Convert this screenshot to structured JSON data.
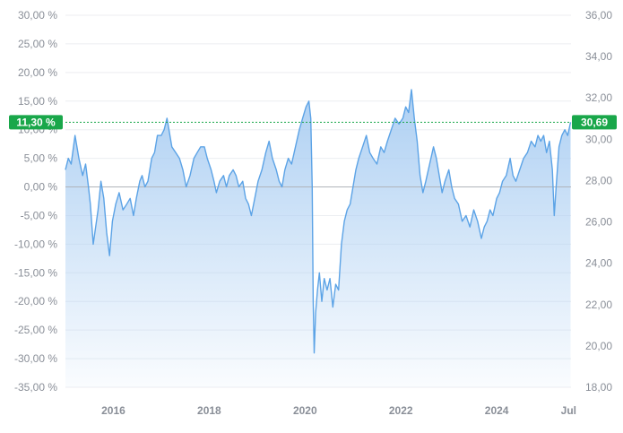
{
  "chart_data": {
    "type": "area",
    "title": "",
    "xlabel": "",
    "ylabel": "",
    "x_range": [
      2015.0,
      2025.55
    ],
    "y_left_range": [
      -35,
      30
    ],
    "y_right_range": [
      18,
      36
    ],
    "y_left_ticks": [
      30,
      25,
      20,
      15,
      10,
      5,
      0,
      -5,
      -10,
      -15,
      -20,
      -25,
      -30,
      -35
    ],
    "y_left_tick_labels": [
      "30,00 %",
      "25,00 %",
      "20,00 %",
      "15,00 %",
      "10,00 %",
      "5,00 %",
      "0,00 %",
      "-5,00 %",
      "-10,00 %",
      "-15,00 %",
      "-20,00 %",
      "-25,00 %",
      "-30,00 %",
      "-35,00 %"
    ],
    "y_right_ticks": [
      36,
      34,
      32,
      30,
      28,
      26,
      24,
      22,
      20,
      18
    ],
    "y_right_tick_labels": [
      "36,00",
      "34,00",
      "32,00",
      "30,00",
      "28,00",
      "26,00",
      "24,00",
      "22,00",
      "20,00",
      "18,00"
    ],
    "x_ticks": [
      2016,
      2018,
      2020,
      2022,
      2024,
      2025.5
    ],
    "x_tick_labels": [
      "2016",
      "2018",
      "2020",
      "2022",
      "2024",
      "Jul"
    ],
    "current_value_left": 11.3,
    "current_label_left": "11,30 %",
    "current_label_right": "30,69",
    "colors": {
      "line": "#5ca3e6",
      "fill_top": "#a9cdf2",
      "badge": "#19a74a",
      "zero_line": "#b0b4ba",
      "grid": "#eceef1"
    },
    "grid": true,
    "series": [
      {
        "values": [
          [
            2015.0,
            3
          ],
          [
            2015.06,
            5
          ],
          [
            2015.12,
            4
          ],
          [
            2015.2,
            9
          ],
          [
            2015.28,
            5
          ],
          [
            2015.36,
            2
          ],
          [
            2015.42,
            4
          ],
          [
            2015.48,
            0
          ],
          [
            2015.52,
            -3
          ],
          [
            2015.58,
            -10
          ],
          [
            2015.63,
            -7
          ],
          [
            2015.68,
            -4
          ],
          [
            2015.74,
            1
          ],
          [
            2015.8,
            -2
          ],
          [
            2015.86,
            -8
          ],
          [
            2015.92,
            -12
          ],
          [
            2015.98,
            -6
          ],
          [
            2016.05,
            -3
          ],
          [
            2016.12,
            -1
          ],
          [
            2016.2,
            -4
          ],
          [
            2016.28,
            -3
          ],
          [
            2016.35,
            -2
          ],
          [
            2016.42,
            -5
          ],
          [
            2016.48,
            -2
          ],
          [
            2016.55,
            1
          ],
          [
            2016.6,
            2
          ],
          [
            2016.66,
            0
          ],
          [
            2016.72,
            1
          ],
          [
            2016.8,
            5
          ],
          [
            2016.86,
            6
          ],
          [
            2016.92,
            9
          ],
          [
            2017.0,
            9
          ],
          [
            2017.06,
            10
          ],
          [
            2017.12,
            12
          ],
          [
            2017.16,
            10
          ],
          [
            2017.22,
            7
          ],
          [
            2017.3,
            6
          ],
          [
            2017.38,
            5
          ],
          [
            2017.45,
            3
          ],
          [
            2017.52,
            0
          ],
          [
            2017.6,
            2
          ],
          [
            2017.68,
            5
          ],
          [
            2017.75,
            6
          ],
          [
            2017.82,
            7
          ],
          [
            2017.9,
            7
          ],
          [
            2017.96,
            5
          ],
          [
            2018.04,
            3
          ],
          [
            2018.1,
            1
          ],
          [
            2018.15,
            -1
          ],
          [
            2018.22,
            1
          ],
          [
            2018.3,
            2
          ],
          [
            2018.36,
            0
          ],
          [
            2018.42,
            2
          ],
          [
            2018.5,
            3
          ],
          [
            2018.56,
            2
          ],
          [
            2018.62,
            0
          ],
          [
            2018.7,
            1
          ],
          [
            2018.76,
            -2
          ],
          [
            2018.82,
            -3
          ],
          [
            2018.88,
            -5
          ],
          [
            2018.95,
            -2
          ],
          [
            2019.02,
            1
          ],
          [
            2019.1,
            3
          ],
          [
            2019.18,
            6
          ],
          [
            2019.25,
            8
          ],
          [
            2019.32,
            5
          ],
          [
            2019.4,
            3
          ],
          [
            2019.46,
            1
          ],
          [
            2019.52,
            0
          ],
          [
            2019.58,
            3
          ],
          [
            2019.65,
            5
          ],
          [
            2019.72,
            4
          ],
          [
            2019.8,
            7
          ],
          [
            2019.88,
            10
          ],
          [
            2019.95,
            12
          ],
          [
            2020.02,
            14
          ],
          [
            2020.08,
            15
          ],
          [
            2020.12,
            12
          ],
          [
            2020.15,
            0
          ],
          [
            2020.17,
            -20
          ],
          [
            2020.19,
            -29
          ],
          [
            2020.22,
            -22
          ],
          [
            2020.26,
            -18
          ],
          [
            2020.3,
            -15
          ],
          [
            2020.35,
            -20
          ],
          [
            2020.4,
            -16
          ],
          [
            2020.46,
            -18
          ],
          [
            2020.52,
            -16
          ],
          [
            2020.58,
            -21
          ],
          [
            2020.64,
            -17
          ],
          [
            2020.7,
            -18
          ],
          [
            2020.76,
            -10
          ],
          [
            2020.82,
            -6
          ],
          [
            2020.88,
            -4
          ],
          [
            2020.94,
            -3
          ],
          [
            2021.0,
            0
          ],
          [
            2021.06,
            3
          ],
          [
            2021.12,
            5
          ],
          [
            2021.2,
            7
          ],
          [
            2021.28,
            9
          ],
          [
            2021.35,
            6
          ],
          [
            2021.42,
            5
          ],
          [
            2021.5,
            4
          ],
          [
            2021.58,
            7
          ],
          [
            2021.65,
            6
          ],
          [
            2021.72,
            8
          ],
          [
            2021.8,
            10
          ],
          [
            2021.88,
            12
          ],
          [
            2021.96,
            11
          ],
          [
            2022.04,
            12
          ],
          [
            2022.1,
            14
          ],
          [
            2022.16,
            13
          ],
          [
            2022.22,
            17
          ],
          [
            2022.28,
            12
          ],
          [
            2022.34,
            8
          ],
          [
            2022.4,
            2
          ],
          [
            2022.46,
            -1
          ],
          [
            2022.52,
            1
          ],
          [
            2022.6,
            4
          ],
          [
            2022.68,
            7
          ],
          [
            2022.74,
            5
          ],
          [
            2022.8,
            2
          ],
          [
            2022.86,
            -1
          ],
          [
            2022.92,
            1
          ],
          [
            2023.0,
            3
          ],
          [
            2023.06,
            0
          ],
          [
            2023.12,
            -2
          ],
          [
            2023.2,
            -3
          ],
          [
            2023.28,
            -6
          ],
          [
            2023.36,
            -5
          ],
          [
            2023.44,
            -7
          ],
          [
            2023.52,
            -4
          ],
          [
            2023.6,
            -6
          ],
          [
            2023.68,
            -9
          ],
          [
            2023.74,
            -7
          ],
          [
            2023.8,
            -6
          ],
          [
            2023.86,
            -4
          ],
          [
            2023.92,
            -5
          ],
          [
            2024.0,
            -2
          ],
          [
            2024.06,
            -1
          ],
          [
            2024.12,
            1
          ],
          [
            2024.2,
            2
          ],
          [
            2024.28,
            5
          ],
          [
            2024.34,
            2
          ],
          [
            2024.4,
            1
          ],
          [
            2024.48,
            3
          ],
          [
            2024.56,
            5
          ],
          [
            2024.64,
            6
          ],
          [
            2024.72,
            8
          ],
          [
            2024.8,
            7
          ],
          [
            2024.86,
            9
          ],
          [
            2024.92,
            8
          ],
          [
            2024.98,
            9
          ],
          [
            2025.04,
            6
          ],
          [
            2025.1,
            8
          ],
          [
            2025.16,
            3
          ],
          [
            2025.2,
            -5
          ],
          [
            2025.24,
            0
          ],
          [
            2025.3,
            7
          ],
          [
            2025.36,
            9
          ],
          [
            2025.42,
            10
          ],
          [
            2025.48,
            9
          ],
          [
            2025.54,
            11.3
          ]
        ]
      }
    ]
  }
}
